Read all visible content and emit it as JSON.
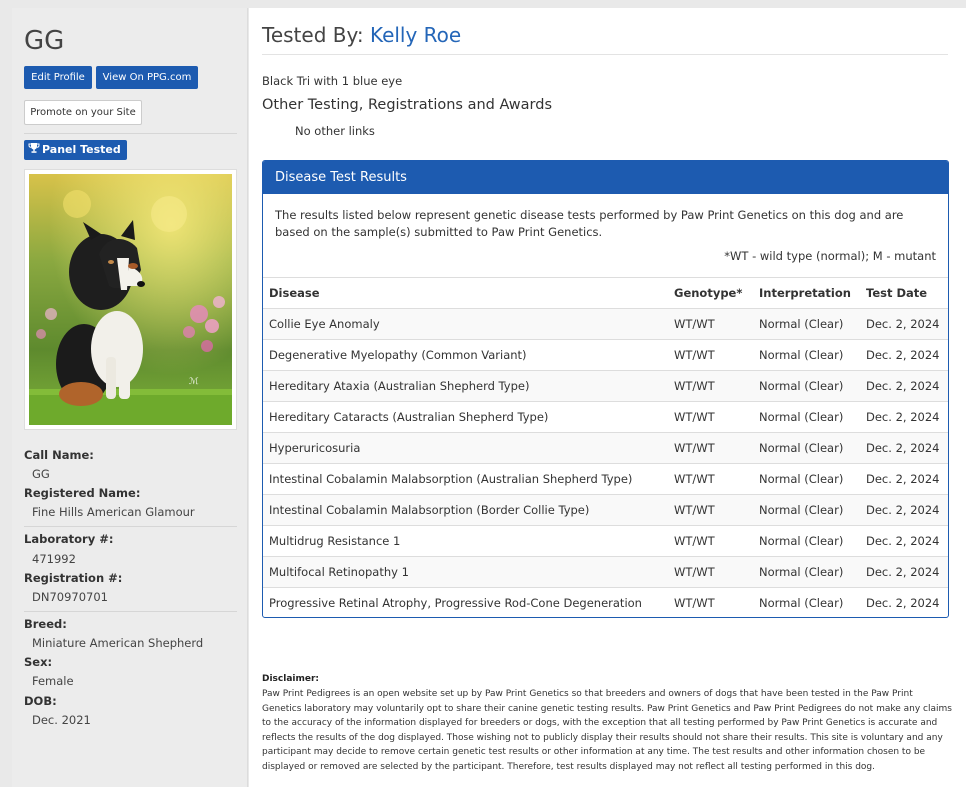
{
  "sidebar": {
    "dog_name": "GG",
    "edit_profile": "Edit Profile",
    "view_on_ppg": "View On PPG.com",
    "promote": "Promote on your Site",
    "badge": "Panel Tested",
    "fields": [
      {
        "label": "Call Name:",
        "value": "GG"
      },
      {
        "label": "Registered Name:",
        "value": "Fine Hills American Glamour"
      },
      {
        "label": "Laboratory #:",
        "value": "471992"
      },
      {
        "label": "Registration #:",
        "value": "DN70970701"
      },
      {
        "label": "Breed:",
        "value": "Miniature American Shepherd"
      },
      {
        "label": "Sex:",
        "value": "Female"
      },
      {
        "label": "DOB:",
        "value": "Dec. 2021"
      }
    ]
  },
  "header": {
    "tested_by_label": "Tested By:",
    "tester_name": "Kelly Roe"
  },
  "description": "Black Tri with 1 blue eye",
  "other_section": {
    "title": "Other Testing, Registrations and Awards",
    "empty_text": "No other links"
  },
  "results": {
    "title": "Disease Test Results",
    "intro": "The results listed below represent genetic disease tests performed by Paw Print Genetics on this dog and are based on the sample(s) submitted to Paw Print Genetics.",
    "legend": "*WT - wild type (normal); M - mutant",
    "columns": [
      "Disease",
      "Genotype*",
      "Interpretation",
      "Test Date"
    ],
    "rows": [
      [
        "Collie Eye Anomaly",
        "WT/WT",
        "Normal (Clear)",
        "Dec. 2, 2024"
      ],
      [
        "Degenerative Myelopathy (Common Variant)",
        "WT/WT",
        "Normal (Clear)",
        "Dec. 2, 2024"
      ],
      [
        "Hereditary Ataxia (Australian Shepherd Type)",
        "WT/WT",
        "Normal (Clear)",
        "Dec. 2, 2024"
      ],
      [
        "Hereditary Cataracts (Australian Shepherd Type)",
        "WT/WT",
        "Normal (Clear)",
        "Dec. 2, 2024"
      ],
      [
        "Hyperuricosuria",
        "WT/WT",
        "Normal (Clear)",
        "Dec. 2, 2024"
      ],
      [
        "Intestinal Cobalamin Malabsorption (Australian Shepherd Type)",
        "WT/WT",
        "Normal (Clear)",
        "Dec. 2, 2024"
      ],
      [
        "Intestinal Cobalamin Malabsorption (Border Collie Type)",
        "WT/WT",
        "Normal (Clear)",
        "Dec. 2, 2024"
      ],
      [
        "Multidrug Resistance 1",
        "WT/WT",
        "Normal (Clear)",
        "Dec. 2, 2024"
      ],
      [
        "Multifocal Retinopathy 1",
        "WT/WT",
        "Normal (Clear)",
        "Dec. 2, 2024"
      ],
      [
        "Progressive Retinal Atrophy, Progressive Rod-Cone Degeneration",
        "WT/WT",
        "Normal (Clear)",
        "Dec. 2, 2024"
      ]
    ]
  },
  "disclaimer": {
    "title": "Disclaimer:",
    "text": "Paw Print Pedigrees is an open website set up by Paw Print Genetics so that breeders and owners of dogs that have been tested in the Paw Print Genetics laboratory may voluntarily opt to share their canine genetic testing results. Paw Print Genetics and Paw Print Pedigrees do not make any claims to the accuracy of the information displayed for breeders or dogs, with the exception that all testing performed by Paw Print Genetics is accurate and reflects the results of the dog displayed. Those wishing not to publicly display their results should not share their results. This site is voluntary and any participant may decide to remove certain genetic test results or other information at any time. The test results and other information chosen to be displayed or removed are selected by the participant. Therefore, test results displayed may not reflect all testing performed in this dog."
  },
  "colors": {
    "brand_blue": "#1d5bb0",
    "link_blue": "#2466b8"
  },
  "icons": {
    "badge_icon": "trophy-icon"
  }
}
